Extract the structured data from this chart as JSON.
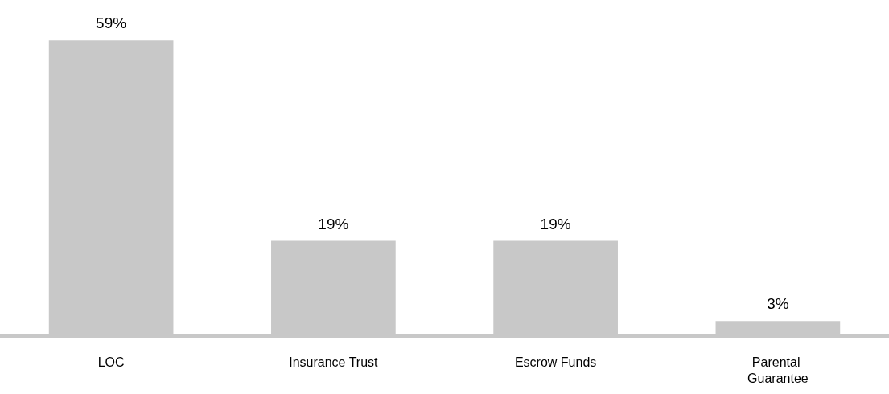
{
  "chart_data": {
    "type": "bar",
    "categories": [
      "LOC",
      "Insurance Trust",
      "Escrow Funds",
      "Parental Guarantee"
    ],
    "values": [
      59,
      19,
      19,
      3
    ],
    "value_labels": [
      "59%",
      "19%",
      "19%",
      "3%"
    ],
    "color": "#c8c8c8"
  }
}
